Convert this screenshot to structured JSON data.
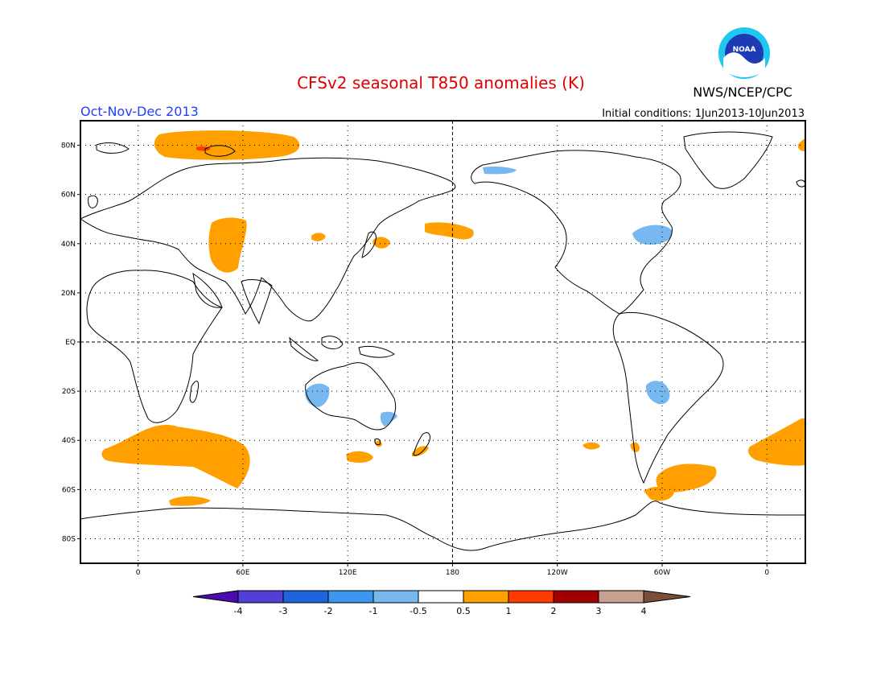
{
  "title": "CFSv2 seasonal T850 anomalies (K)",
  "season": "Oct-Nov-Dec 2013",
  "agency": "NWS/NCEP/CPC",
  "logo_text": "NOAA",
  "initial_conditions": "Initial conditions: 1Jun2013-10Jun2013",
  "colors": {
    "title": "#e00000",
    "season": "#2040ff",
    "warm": "#ff9f00",
    "warm2": "#ff3c00",
    "cool": "#78b8f0"
  },
  "lat_ticks": [
    {
      "lat": 80,
      "label": "80N"
    },
    {
      "lat": 60,
      "label": "60N"
    },
    {
      "lat": 40,
      "label": "40N"
    },
    {
      "lat": 20,
      "label": "20N"
    },
    {
      "lat": 0,
      "label": "EQ"
    },
    {
      "lat": -20,
      "label": "20S"
    },
    {
      "lat": -40,
      "label": "40S"
    },
    {
      "lat": -60,
      "label": "60S"
    },
    {
      "lat": -80,
      "label": "80S"
    }
  ],
  "lon_ticks": [
    {
      "lon": 0,
      "label": "0"
    },
    {
      "lon": 60,
      "label": "60E"
    },
    {
      "lon": 120,
      "label": "120E"
    },
    {
      "lon": 180,
      "label": "180"
    },
    {
      "lon": 240,
      "label": "120W"
    },
    {
      "lon": 300,
      "label": "60W"
    },
    {
      "lon": 360,
      "label": "0"
    }
  ],
  "colorbar": {
    "colors": [
      "#4a0cb0",
      "#5040d8",
      "#1e64dc",
      "#3c96f0",
      "#78b8f0",
      "#ffffff",
      "#ff9f00",
      "#ff3c00",
      "#a00000",
      "#c8a090",
      "#7a4f3a"
    ],
    "labels": [
      "-4",
      "-3",
      "-2",
      "-1",
      "-0.5",
      "0.5",
      "1",
      "2",
      "3",
      "4"
    ]
  },
  "anomalies": [
    {
      "name": "arctic-greenland-sea",
      "value": 0.8,
      "lon": 35,
      "lat": 80
    },
    {
      "name": "arctic-core",
      "value": 1.2,
      "lon": 47,
      "lat": 80
    },
    {
      "name": "caspian-region",
      "value": 0.8,
      "lon": 59,
      "lat": 40
    },
    {
      "name": "mongolia",
      "value": 0.8,
      "lon": 110,
      "lat": 42
    },
    {
      "name": "japan",
      "value": 0.8,
      "lon": 148,
      "lat": 41
    },
    {
      "name": "north-pacific-dateline",
      "value": 0.8,
      "lon": 187,
      "lat": 46
    },
    {
      "name": "bering-strait",
      "value": -0.8,
      "lon": 195,
      "lat": 70
    },
    {
      "name": "northeast-usa",
      "value": -0.8,
      "lon": 290,
      "lat": 42
    },
    {
      "name": "west-australia",
      "value": -0.8,
      "lon": 114,
      "lat": -22
    },
    {
      "name": "east-australia",
      "value": -0.8,
      "lon": 151,
      "lat": -30
    },
    {
      "name": "tasmania",
      "value": 0.8,
      "lon": 146,
      "lat": -42
    },
    {
      "name": "south-of-australia",
      "value": 0.8,
      "lon": 134,
      "lat": -47
    },
    {
      "name": "new-zealand",
      "value": 0.8,
      "lon": 173,
      "lat": -43
    },
    {
      "name": "south-america-interior",
      "value": -0.8,
      "lon": 303,
      "lat": -20
    },
    {
      "name": "south-pacific-east",
      "value": 0.8,
      "lon": 263,
      "lat": -44
    },
    {
      "name": "patagonia",
      "value": 0.8,
      "lon": 290,
      "lat": -43
    },
    {
      "name": "south-atlantic",
      "value": 0.8,
      "lon": 320,
      "lat": -55
    },
    {
      "name": "drake-passage",
      "value": 0.8,
      "lon": 300,
      "lat": -63
    },
    {
      "name": "south-indian-ocean",
      "value": 0.8,
      "lon": 40,
      "lat": -45
    },
    {
      "name": "southern-ocean-indian",
      "value": 0.8,
      "lon": 30,
      "lat": -65
    },
    {
      "name": "southeast-atlantic-wrap",
      "value": 0.8,
      "lon": 15,
      "lat": -44
    }
  ]
}
